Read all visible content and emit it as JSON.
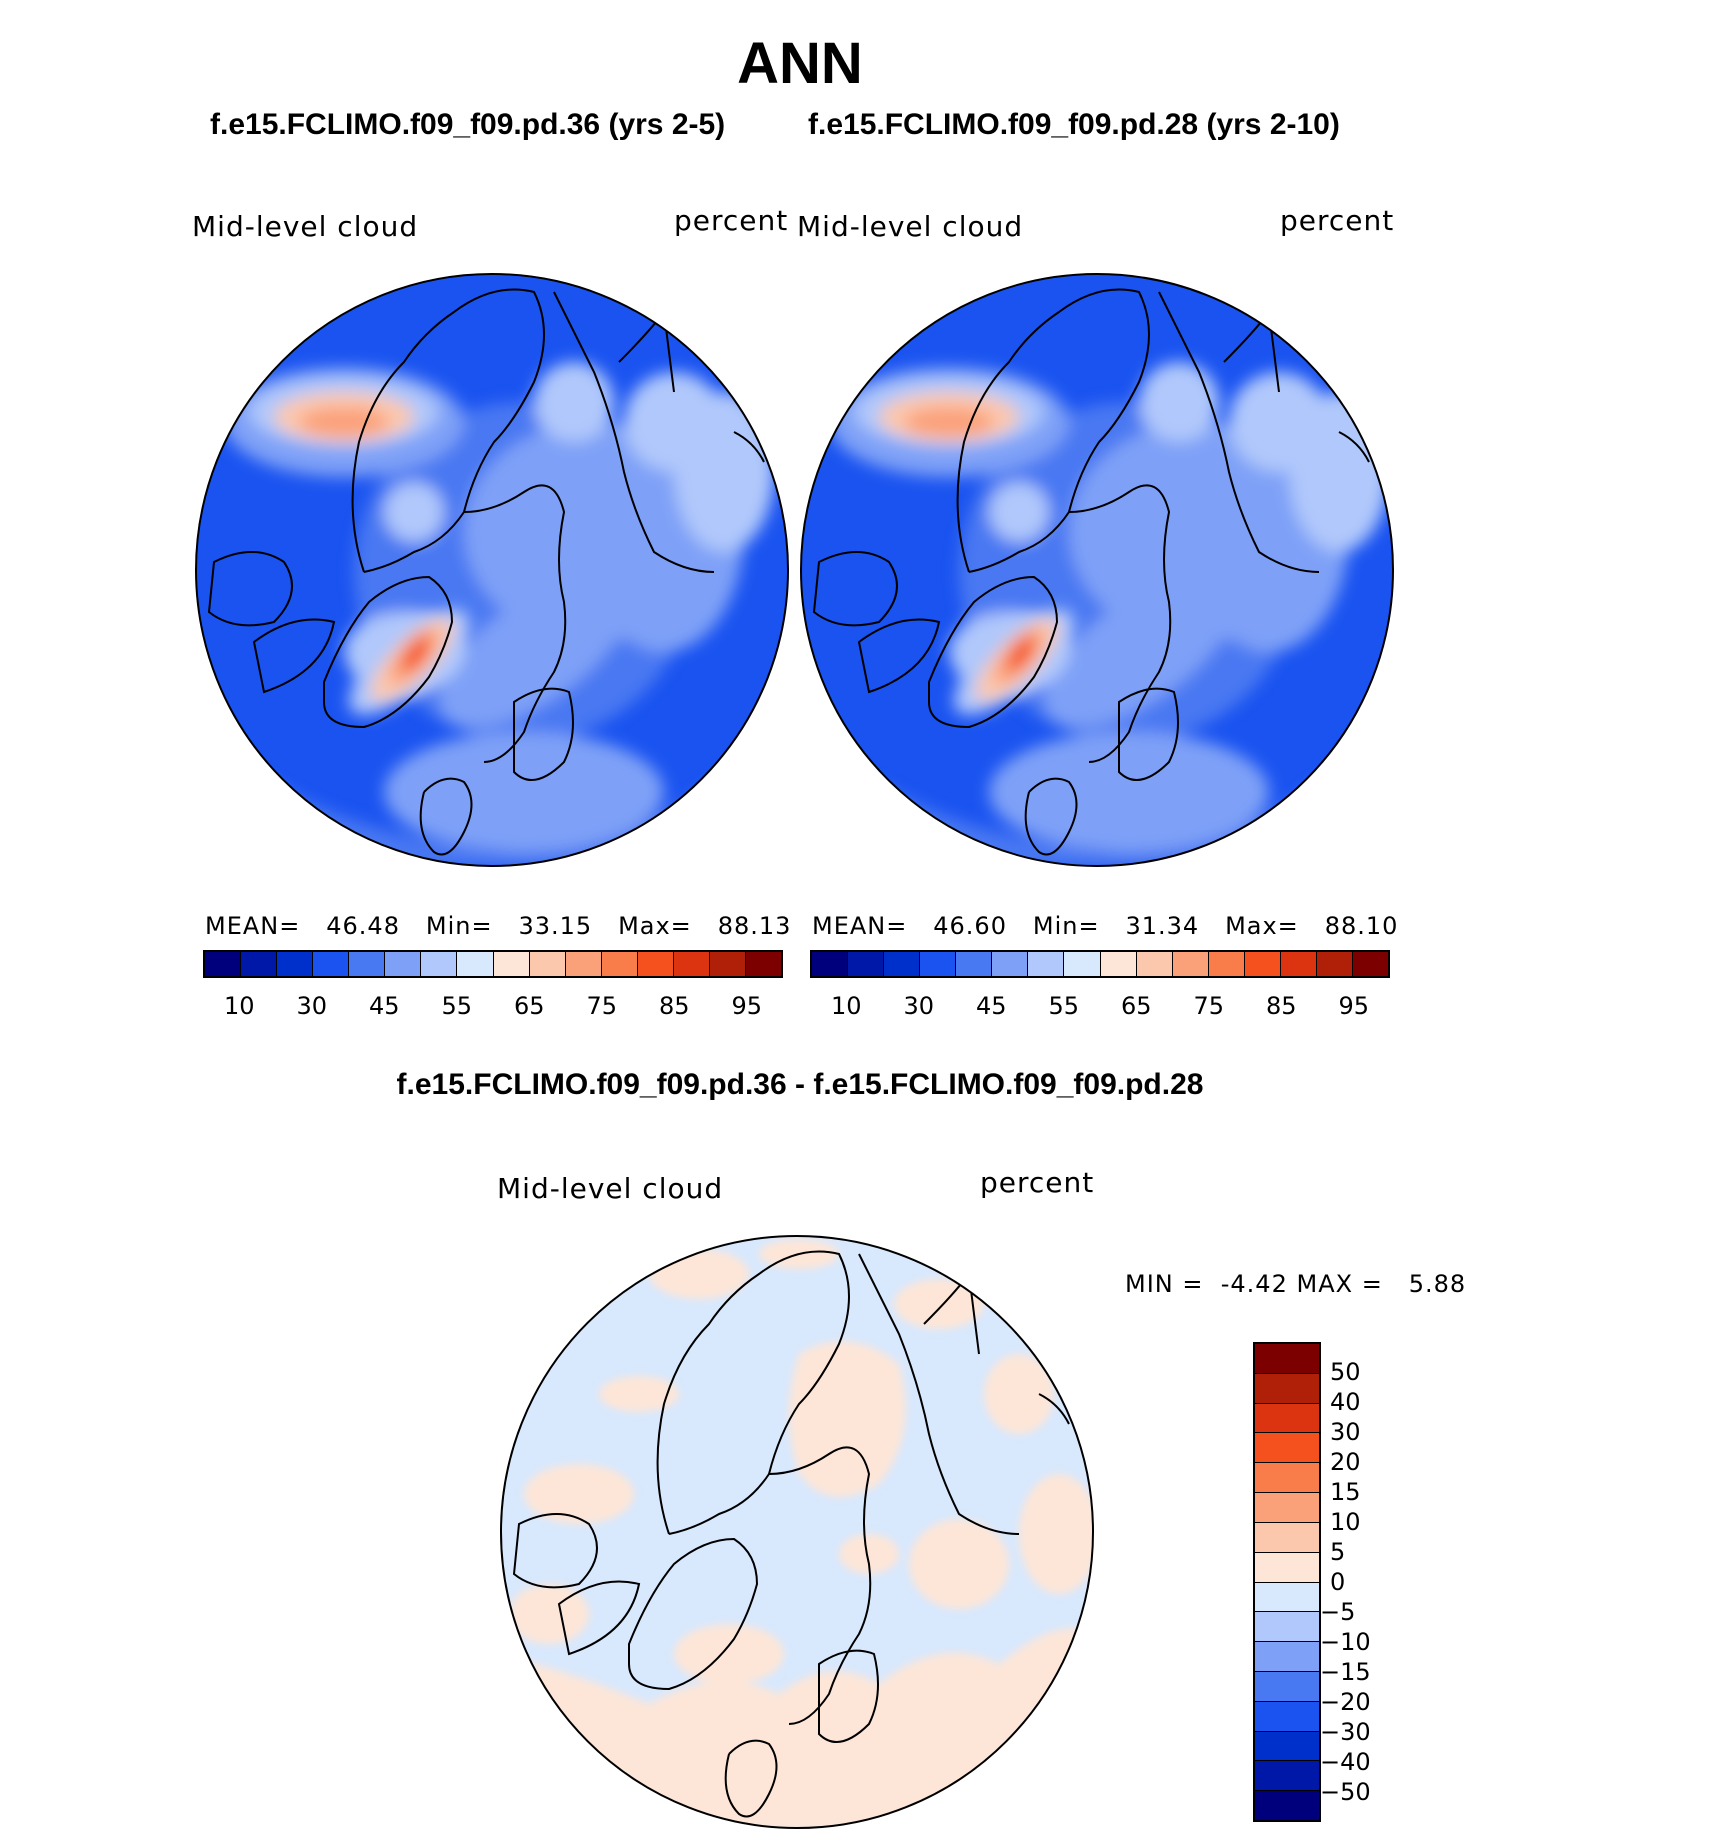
{
  "figure": {
    "season": "ANN",
    "case1_title": "f.e15.FCLIMO.f09_f09.pd.36 (yrs 2-5)",
    "case2_title": "f.e15.FCLIMO.f09_f09.pd.28 (yrs 2-10)",
    "diff_title": "f.e15.FCLIMO.f09_f09.pd.36 - f.e15.FCLIMO.f09_f09.pd.28"
  },
  "panels": [
    {
      "variable": "Mid-level cloud",
      "units": "percent",
      "mean_label": "MEAN=",
      "mean": "46.48",
      "min_label": "Min=",
      "min": "33.15",
      "max_label": "Max=",
      "max": "88.13",
      "colorbar_ticks": [
        "10",
        "30",
        "45",
        "55",
        "65",
        "75",
        "85",
        "95"
      ]
    },
    {
      "variable": "Mid-level cloud",
      "units": "percent",
      "mean_label": "MEAN=",
      "mean": "46.60",
      "min_label": "Min=",
      "min": "31.34",
      "max_label": "Max=",
      "max": "88.10",
      "colorbar_ticks": [
        "10",
        "30",
        "45",
        "55",
        "65",
        "75",
        "85",
        "95"
      ]
    }
  ],
  "diff_panel": {
    "variable": "Mid-level cloud",
    "units": "percent",
    "min_label": "MIN =",
    "min": "-4.42",
    "max_label": "MAX =",
    "max": "5.88",
    "colorbar_ticks": [
      "50",
      "40",
      "30",
      "20",
      "15",
      "10",
      "5",
      "0",
      "−5",
      "−10",
      "−15",
      "−20",
      "−30",
      "−40",
      "−50"
    ]
  },
  "colors": {
    "main_scale": [
      "#00007d",
      "#0018a8",
      "#0030cc",
      "#1a53f0",
      "#4878f2",
      "#7ea0f7",
      "#b0c8fb",
      "#d8e8fd",
      "#fde6d8",
      "#fcc8ad",
      "#fba17a",
      "#f97d4a",
      "#f4511f",
      "#dc3410",
      "#b01f07",
      "#7d0000"
    ],
    "diff_scale": [
      "#7d0000",
      "#b01f07",
      "#dc3410",
      "#f4511f",
      "#f97d4a",
      "#fba17a",
      "#fcc8ad",
      "#fde6d8",
      "#d8e8fd",
      "#b0c8fb",
      "#7ea0f7",
      "#4878f2",
      "#1a53f0",
      "#0030cc",
      "#0018a8",
      "#00007d"
    ]
  }
}
